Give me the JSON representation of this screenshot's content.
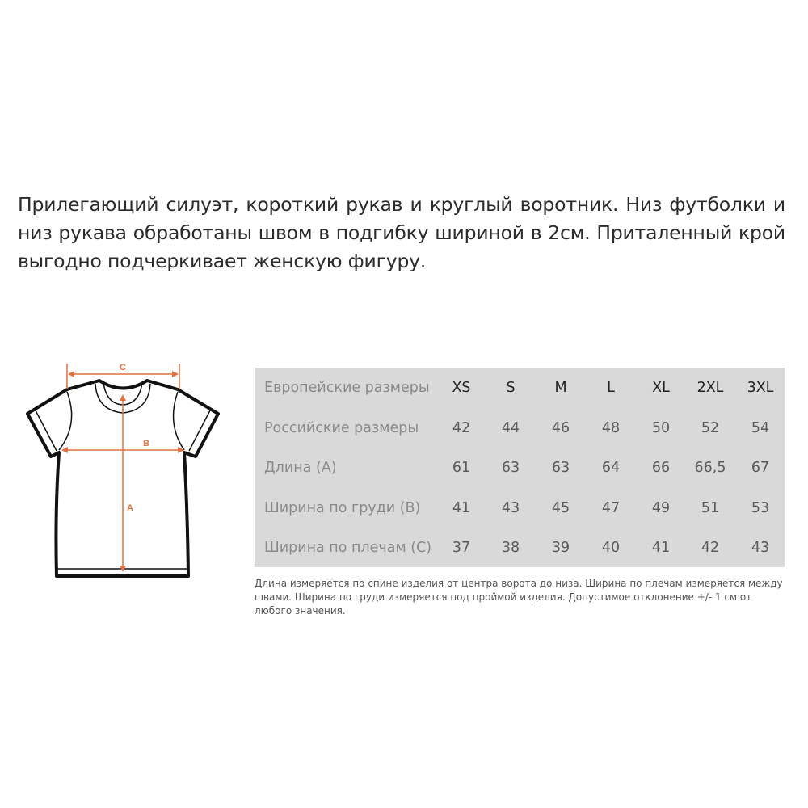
{
  "intro": "Прилегающий силуэт, короткий рукав и круглый воротник. Низ футболки и низ рукава обработаны швом в подгибку шириной в 2см. Приталенный крой выгодно подчеркивает женскую фигуру.",
  "diagram": {
    "label_a": "A",
    "label_b": "B",
    "label_c": "C",
    "accent_color": "#e0703f"
  },
  "size_table": {
    "background": "#d9d9d9",
    "rows": [
      {
        "label": "Европейские размеры",
        "values": [
          "XS",
          "S",
          "M",
          "L",
          "XL",
          "2XL",
          "3XL"
        ]
      },
      {
        "label": "Российские размеры",
        "values": [
          "42",
          "44",
          "46",
          "48",
          "50",
          "52",
          "54"
        ]
      },
      {
        "label": "Длина (А)",
        "values": [
          "61",
          "63",
          "63",
          "64",
          "66",
          "66,5",
          "67"
        ]
      },
      {
        "label": "Ширина по груди (В)",
        "values": [
          "41",
          "43",
          "45",
          "47",
          "49",
          "51",
          "53"
        ]
      },
      {
        "label": "Ширина по плечам (С)",
        "values": [
          "37",
          "38",
          "39",
          "40",
          "41",
          "42",
          "43"
        ]
      }
    ]
  },
  "note": "Длина измеряется по спине изделия от центра ворота до низа. Ширина по плечам измеряется между швами. Ширина по груди измеряется под проймой изделия. Допустимое отклонение +/- 1 см от любого значения."
}
